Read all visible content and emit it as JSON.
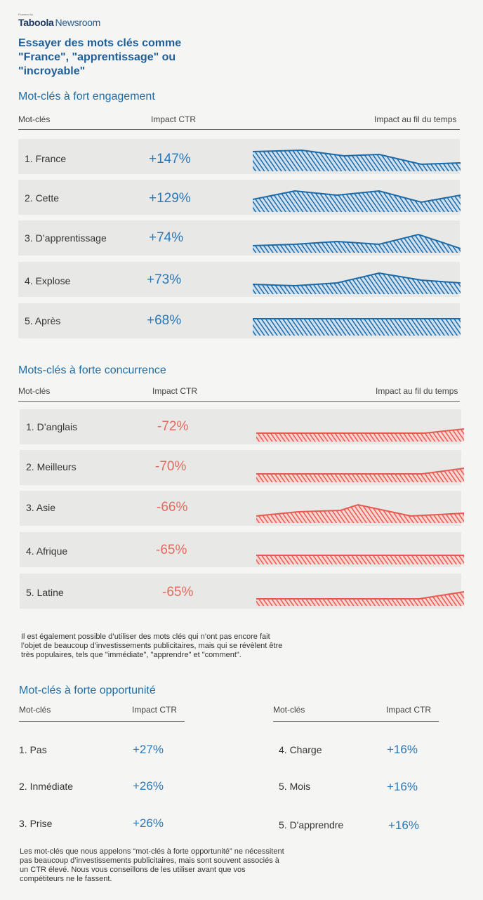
{
  "brand": {
    "powered_by": "Powered by",
    "logo": "Taboola",
    "product": "Newsroom"
  },
  "title": "Essayer des mots clés comme \"France\", \"apprentissage\" ou \"incroyable\"",
  "colors": {
    "accent_blue": "#1f6ea8",
    "positive": "#2a78b8",
    "negative": "#e46a5d",
    "sparkline_blue": "#1d6aa8",
    "sparkline_red": "#e85a50"
  },
  "high_engagement": {
    "title": "Mot-clés à fort engagement",
    "col_keyword": "Mot-clés",
    "col_impact": "Impact CTR",
    "col_trend": "Impact au fil du temps",
    "rows": [
      {
        "keyword": "1. France",
        "impact": "+147%"
      },
      {
        "keyword": "2. Cette",
        "impact": "+129%"
      },
      {
        "keyword": "3. D’apprentissage",
        "impact": "+74%"
      },
      {
        "keyword": "4. Explose",
        "impact": "+73%"
      },
      {
        "keyword": "5. Après",
        "impact": "+68%"
      }
    ]
  },
  "high_competition": {
    "title": "Mots-clés à forte concurrence",
    "col_keyword": "Mot-clés",
    "col_impact": "Impact CTR",
    "col_trend": "Impact au fil du temps",
    "rows": [
      {
        "keyword": "1. D’anglais",
        "impact": "-72%"
      },
      {
        "keyword": "2. Meilleurs",
        "impact": "-70%"
      },
      {
        "keyword": "3. Asie",
        "impact": "-66%"
      },
      {
        "keyword": "4. Afrique",
        "impact": "-65%"
      },
      {
        "keyword": "5. Latine",
        "impact": "-65%"
      }
    ]
  },
  "middle_note": "Il est également possible d’utiliser des mots clés qui n’ont pas encore fait l’objet de beaucoup d’investissements publicitaires, mais qui se révèlent être très populaires, tels que \"immédiate\", \"apprendre\" et \"comment\".",
  "high_opportunity": {
    "title": "Mot-clés à forte opportunité",
    "col_keyword": "Mot-clés",
    "col_impact": "Impact CTR",
    "left": [
      {
        "keyword": "1. Pas",
        "impact": "+27%"
      },
      {
        "keyword": "2. Inmédiate",
        "impact": "+26%"
      },
      {
        "keyword": "3. Prise",
        "impact": "+26%"
      }
    ],
    "right": [
      {
        "keyword": "4. Charge",
        "impact": "+16%"
      },
      {
        "keyword": "5. Mois",
        "impact": "+16%"
      },
      {
        "keyword": "5. D'apprendre",
        "impact": "+16%"
      }
    ]
  },
  "footer_note": "Les mot-clés que nous appelons “mot-clés à forte opportunité” ne nécessitent pas beaucoup d’investissements publicitaires, mais sont souvent associés à un CTR élevé. Nous vous conseillons de les utiliser avant que vos compétiteurs ne le fassent."
}
